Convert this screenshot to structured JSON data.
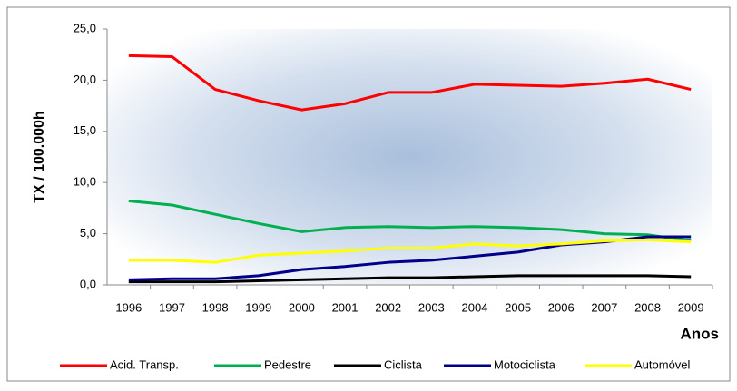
{
  "chart_data": {
    "type": "line",
    "x_label": "Anos",
    "y_label": "TX / 100.000h",
    "categories": [
      "1996",
      "1997",
      "1998",
      "1999",
      "2000",
      "2001",
      "2002",
      "2003",
      "2004",
      "2005",
      "2006",
      "2007",
      "2008",
      "2009"
    ],
    "series": [
      {
        "name": "Acid. Transp.",
        "color": "#ff0000",
        "values": [
          22.4,
          22.3,
          19.1,
          18.0,
          17.1,
          17.7,
          18.8,
          18.8,
          19.6,
          19.5,
          19.4,
          19.7,
          20.1,
          19.1
        ]
      },
      {
        "name": "Pedestre",
        "color": "#00b050",
        "values": [
          8.2,
          7.8,
          6.9,
          6.0,
          5.2,
          5.6,
          5.7,
          5.6,
          5.7,
          5.6,
          5.4,
          5.0,
          4.9,
          4.3
        ]
      },
      {
        "name": "Ciclista",
        "color": "#000000",
        "values": [
          0.3,
          0.3,
          0.3,
          0.4,
          0.5,
          0.6,
          0.7,
          0.7,
          0.8,
          0.9,
          0.9,
          0.9,
          0.9,
          0.8
        ]
      },
      {
        "name": "Motociclista",
        "color": "#00008b",
        "values": [
          0.5,
          0.6,
          0.6,
          0.9,
          1.5,
          1.8,
          2.2,
          2.4,
          2.8,
          3.2,
          3.9,
          4.2,
          4.7,
          4.7
        ]
      },
      {
        "name": "Automóvel",
        "color": "#ffff00",
        "values": [
          2.4,
          2.4,
          2.2,
          2.9,
          3.1,
          3.3,
          3.6,
          3.6,
          4.0,
          3.8,
          4.0,
          4.3,
          4.4,
          4.2
        ]
      }
    ],
    "ylim": [
      0,
      25
    ],
    "yticks": [
      {
        "value": 0,
        "label": "0,0"
      },
      {
        "value": 5,
        "label": "5,0"
      },
      {
        "value": 10,
        "label": "10,0"
      },
      {
        "value": 15,
        "label": "15,0"
      },
      {
        "value": 20,
        "label": "20,0"
      },
      {
        "value": 25,
        "label": "25,0"
      }
    ],
    "legend": "bottom"
  }
}
